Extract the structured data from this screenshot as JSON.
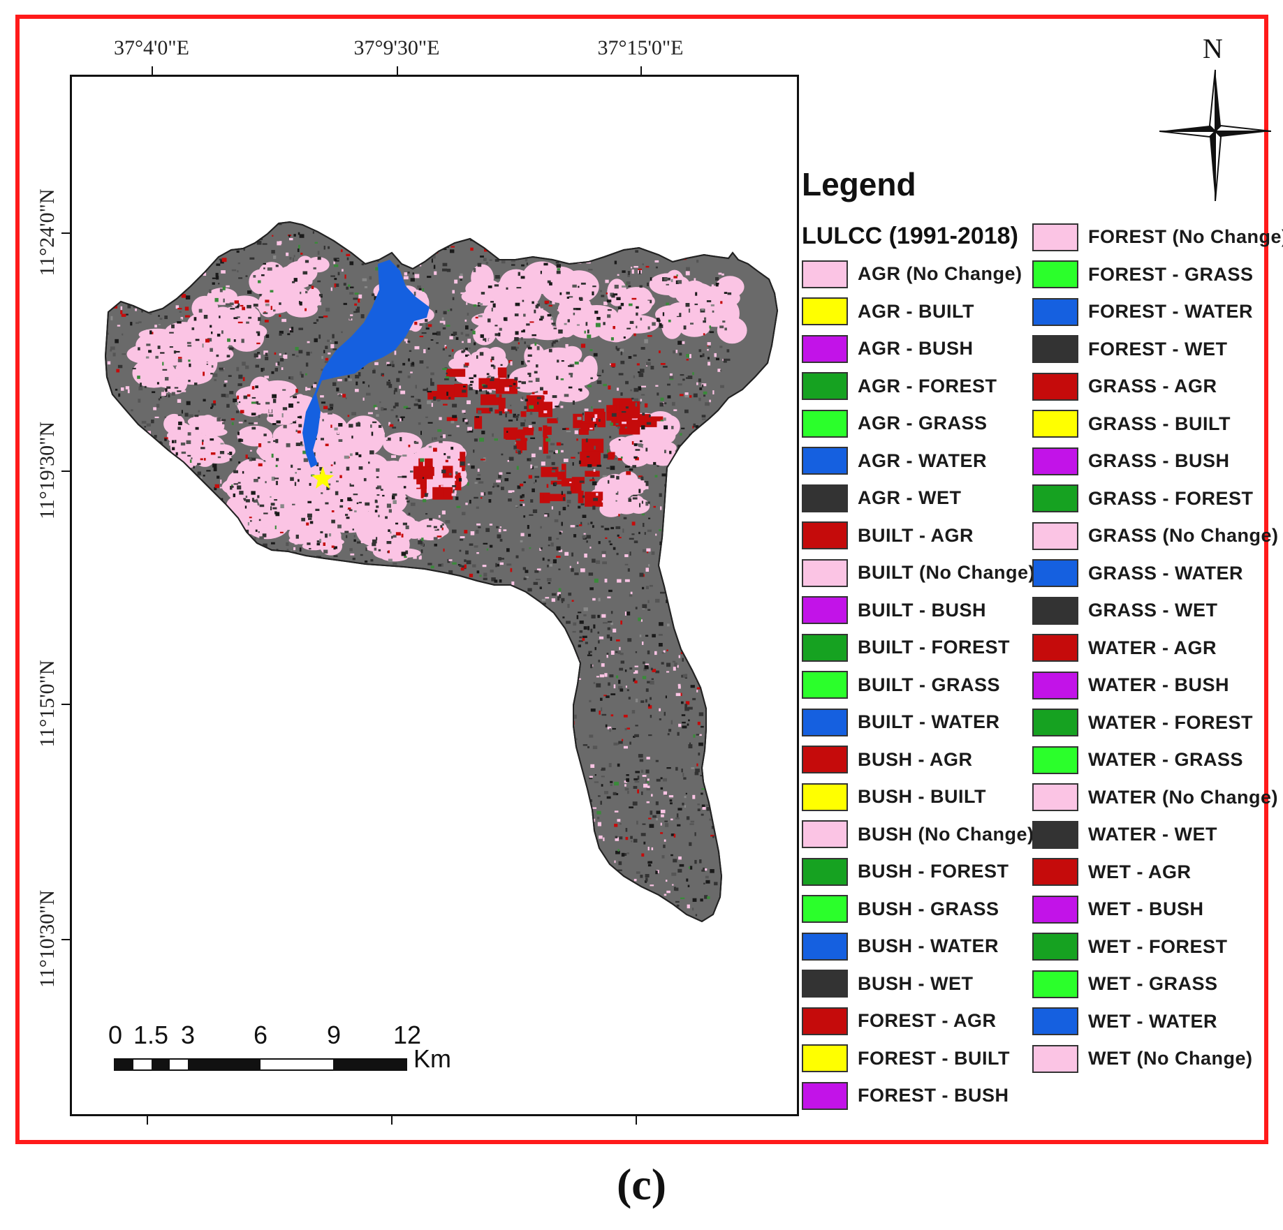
{
  "map": {
    "lon_labels": [
      "37°4'0\"E",
      "37°9'30\"E",
      "37°15'0\"E"
    ],
    "lat_labels": [
      "11°24'0\"N",
      "11°19'30\"N",
      "11°15'0\"N",
      "11°10'30\"N"
    ],
    "north_label": "N",
    "scale_numbers": [
      "0",
      "1.5",
      "3",
      "6",
      "9",
      "12"
    ],
    "scale_unit": "Km"
  },
  "legend": {
    "title": "Legend",
    "subtitle": "LULCC (1991-2018)",
    "items": [
      {
        "label": "AGR (No Change)",
        "color": "#fbc4e4"
      },
      {
        "label": "AGR - BUILT",
        "color": "#ffff00"
      },
      {
        "label": "AGR - BUSH",
        "color": "#c213e8"
      },
      {
        "label": "AGR - FOREST",
        "color": "#16a221"
      },
      {
        "label": "AGR - GRASS",
        "color": "#2bff2b"
      },
      {
        "label": "AGR - WATER",
        "color": "#1560e0"
      },
      {
        "label": "AGR - WET",
        "color": "#333333"
      },
      {
        "label": "BUILT - AGR",
        "color": "#c50b0b"
      },
      {
        "label": "BUILT (No Change)",
        "color": "#fbc4e4"
      },
      {
        "label": "BUILT - BUSH",
        "color": "#c213e8"
      },
      {
        "label": "BUILT - FOREST",
        "color": "#16a221"
      },
      {
        "label": "BUILT - GRASS",
        "color": "#2bff2b"
      },
      {
        "label": "BUILT - WATER",
        "color": "#1560e0"
      },
      {
        "label": "BUSH - AGR",
        "color": "#c50b0b"
      },
      {
        "label": "BUSH - BUILT",
        "color": "#ffff00"
      },
      {
        "label": "BUSH (No Change)",
        "color": "#fbc4e4"
      },
      {
        "label": "BUSH - FOREST",
        "color": "#16a221"
      },
      {
        "label": "BUSH - GRASS",
        "color": "#2bff2b"
      },
      {
        "label": "BUSH - WATER",
        "color": "#1560e0"
      },
      {
        "label": "BUSH - WET",
        "color": "#333333"
      },
      {
        "label": "FOREST - AGR",
        "color": "#c50b0b"
      },
      {
        "label": "FOREST - BUILT",
        "color": "#ffff00"
      },
      {
        "label": "FOREST - BUSH",
        "color": "#c213e8"
      },
      {
        "label": "FOREST (No Change)",
        "color": "#fbc4e4"
      },
      {
        "label": "FOREST - GRASS",
        "color": "#2bff2b"
      },
      {
        "label": "FOREST - WATER",
        "color": "#1560e0"
      },
      {
        "label": "FOREST - WET",
        "color": "#333333"
      },
      {
        "label": "GRASS - AGR",
        "color": "#c50b0b"
      },
      {
        "label": "GRASS - BUILT",
        "color": "#ffff00"
      },
      {
        "label": "GRASS - BUSH",
        "color": "#c213e8"
      },
      {
        "label": "GRASS - FOREST",
        "color": "#16a221"
      },
      {
        "label": "GRASS (No Change)",
        "color": "#fbc4e4"
      },
      {
        "label": "GRASS - WATER",
        "color": "#1560e0"
      },
      {
        "label": "GRASS - WET",
        "color": "#333333"
      },
      {
        "label": "WATER - AGR",
        "color": "#c50b0b"
      },
      {
        "label": "WATER - BUSH",
        "color": "#c213e8"
      },
      {
        "label": "WATER - FOREST",
        "color": "#16a221"
      },
      {
        "label": "WATER - GRASS",
        "color": "#2bff2b"
      },
      {
        "label": "WATER (No Change)",
        "color": "#fbc4e4"
      },
      {
        "label": "WATER - WET",
        "color": "#333333"
      },
      {
        "label": "WET - AGR",
        "color": "#c50b0b"
      },
      {
        "label": "WET - BUSH",
        "color": "#c213e8"
      },
      {
        "label": "WET - FOREST",
        "color": "#16a221"
      },
      {
        "label": "WET - GRASS",
        "color": "#2bff2b"
      },
      {
        "label": "WET - WATER",
        "color": "#1560e0"
      },
      {
        "label": "WET (No Change)",
        "color": "#fbc4e4"
      }
    ]
  },
  "colors": {
    "frame": "#ff1a1a",
    "no_change_pink": "#fbc4e4",
    "wet_dark": "#333333",
    "water_blue": "#1560e0",
    "agr_red": "#c50b0b",
    "grey_mix": "#6a6a6a"
  },
  "caption": "(c)"
}
